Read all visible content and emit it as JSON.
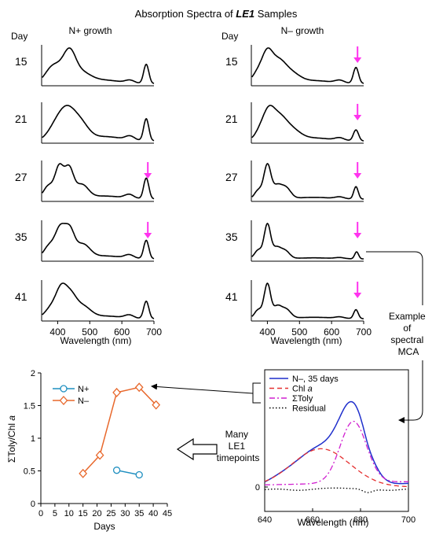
{
  "figure": {
    "title_prefix": "Absorption Spectra of ",
    "title_sample": "LE1",
    "title_suffix": " Samples",
    "col_left_label": "N+ growth",
    "col_right_label": "N– growth",
    "day_header": "Day",
    "wavelength_label": "Wavelength (nm)",
    "example_label_lines": [
      "Example",
      "of",
      "spectral",
      "MCA"
    ],
    "many_label_lines": [
      "Many",
      "LE1",
      "timepoints"
    ]
  },
  "colors": {
    "arrow_magenta": "#ff33ee",
    "n_plus": "#1f8fc0",
    "n_minus": "#e8682c",
    "blue": "#1f2fcc",
    "red": "#e53030",
    "magenta": "#d020d0",
    "black": "#000000"
  },
  "chart_data": [
    {
      "type": "line",
      "panel": "absorption-spectra-grid",
      "xlabel": "Wavelength (nm)",
      "xlim": [
        350,
        700
      ],
      "x_ticks": [
        400,
        500,
        600,
        700
      ],
      "days": [
        "15",
        "21",
        "27",
        "35",
        "41"
      ],
      "n_plus": {
        "label": "N+ growth",
        "magenta_arrow_days": [
          "27",
          "35"
        ]
      },
      "n_minus": {
        "label": "N– growth",
        "magenta_arrow_days": [
          "15",
          "21",
          "27",
          "35",
          "41"
        ]
      }
    },
    {
      "type": "line",
      "panel": "sigma-toly-over-chl-a",
      "ylabel_prefix": "ΣToly/Chl ",
      "ylabel_italic": "a",
      "xlabel": "Days",
      "xlim": [
        0,
        45
      ],
      "ylim": [
        0,
        2
      ],
      "x_ticks": [
        "0",
        "5",
        "10",
        "15",
        "20",
        "25",
        "30",
        "35",
        "40",
        "45"
      ],
      "y_ticks": [
        "0",
        "0.5",
        "1",
        "1.5",
        "2"
      ],
      "series": [
        {
          "name": "N+",
          "color": "#1f8fc0",
          "marker": "circle",
          "x": [
            27,
            35
          ],
          "y": [
            0.51,
            0.44
          ]
        },
        {
          "name": "N–",
          "color": "#e8682c",
          "marker": "diamond",
          "x": [
            15,
            21,
            27,
            35,
            41
          ],
          "y": [
            0.46,
            0.74,
            1.7,
            1.78,
            1.51
          ]
        }
      ],
      "legend_position": "top-left"
    },
    {
      "type": "line",
      "panel": "spectral-mca-example",
      "xlabel": "Wavelength (nm)",
      "xlim": [
        640,
        700
      ],
      "x_ticks": [
        "640",
        "660",
        "680",
        "700"
      ],
      "y_ticks": [
        "0"
      ],
      "series": [
        {
          "name": "N–, 35 days",
          "color": "#1f2fcc",
          "dash": "solid"
        },
        {
          "name_prefix": "Chl ",
          "name_italic": "a",
          "color": "#e53030",
          "dash": "dashed"
        },
        {
          "name": "ΣToly",
          "color": "#d020d0",
          "dash": "dashdot"
        },
        {
          "name": "Residual",
          "color": "#000000",
          "dash": "dotted"
        }
      ],
      "legend_position": "top-left"
    }
  ]
}
